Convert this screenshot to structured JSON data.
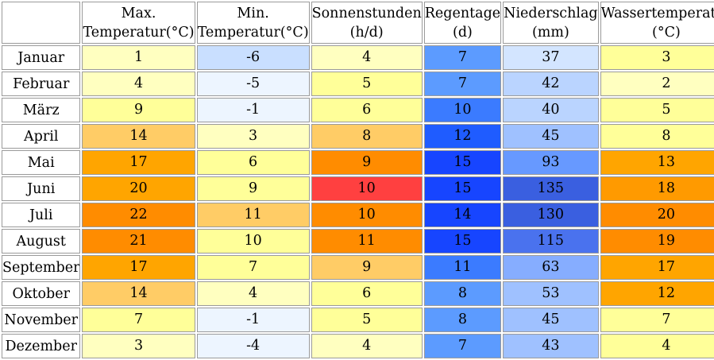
{
  "table": {
    "headers": [
      {
        "line1": "Max.",
        "line2": "Temperatur(°C)"
      },
      {
        "line1": "Min.",
        "line2": "Temperatur(°C)"
      },
      {
        "line1": "Sonnenstunden",
        "line2": "(h/d)"
      },
      {
        "line1": "Regentage",
        "line2": "(d)"
      },
      {
        "line1": "Niederschlag",
        "line2": "(mm)"
      },
      {
        "line1": "Wassertemperatur",
        "line2": "(°C)"
      }
    ],
    "rows": [
      {
        "month": "Januar",
        "cells": [
          "1",
          "-6",
          "4",
          "7",
          "37",
          "3"
        ]
      },
      {
        "month": "Februar",
        "cells": [
          "4",
          "-5",
          "5",
          "7",
          "42",
          "2"
        ]
      },
      {
        "month": "März",
        "cells": [
          "9",
          "-1",
          "6",
          "10",
          "40",
          "5"
        ]
      },
      {
        "month": "April",
        "cells": [
          "14",
          "3",
          "8",
          "12",
          "45",
          "8"
        ]
      },
      {
        "month": "Mai",
        "cells": [
          "17",
          "6",
          "9",
          "15",
          "93",
          "13"
        ]
      },
      {
        "month": "Juni",
        "cells": [
          "20",
          "9",
          "10",
          "15",
          "135",
          "18"
        ]
      },
      {
        "month": "Juli",
        "cells": [
          "22",
          "11",
          "10",
          "14",
          "130",
          "20"
        ]
      },
      {
        "month": "August",
        "cells": [
          "21",
          "10",
          "11",
          "15",
          "115",
          "19"
        ]
      },
      {
        "month": "September",
        "cells": [
          "17",
          "7",
          "9",
          "11",
          "63",
          "17"
        ]
      },
      {
        "month": "Oktober",
        "cells": [
          "14",
          "4",
          "6",
          "8",
          "53",
          "12"
        ]
      },
      {
        "month": "November",
        "cells": [
          "7",
          "-1",
          "5",
          "8",
          "45",
          "7"
        ]
      },
      {
        "month": "Dezember",
        "cells": [
          "3",
          "-4",
          "4",
          "7",
          "43",
          "4"
        ]
      }
    ],
    "cell_colors": [
      [
        "#ffffc0",
        "#c9dfff",
        "#ffffc0",
        "#5c9bff",
        "#d3e5ff",
        "#ffff99"
      ],
      [
        "#ffffc0",
        "#edf5ff",
        "#ffff99",
        "#5c9bff",
        "#bad4ff",
        "#ffffc0"
      ],
      [
        "#ffff99",
        "#edf5ff",
        "#ffff99",
        "#3b7bff",
        "#bad4ff",
        "#ffff99"
      ],
      [
        "#ffcc66",
        "#ffffc0",
        "#ffcc66",
        "#1f5cff",
        "#9fc1ff",
        "#ffff99"
      ],
      [
        "#ffa500",
        "#ffff99",
        "#ff8c00",
        "#1745ff",
        "#6799ff",
        "#ffa500"
      ],
      [
        "#ffa500",
        "#ffff99",
        "#ff4040",
        "#1745ff",
        "#3a5fe0",
        "#ff9a00"
      ],
      [
        "#ff8c00",
        "#ffcc66",
        "#ff8c00",
        "#1745ff",
        "#3a5fe0",
        "#ff8c00"
      ],
      [
        "#ff8c00",
        "#ffff99",
        "#ff8c00",
        "#1745ff",
        "#4a72ee",
        "#ff8c00"
      ],
      [
        "#ffa500",
        "#ffff99",
        "#ffcc66",
        "#3b7bff",
        "#86adff",
        "#ffa500"
      ],
      [
        "#ffcc66",
        "#ffffc0",
        "#ffff99",
        "#5c9bff",
        "#9fc1ff",
        "#ffa500"
      ],
      [
        "#ffff99",
        "#edf5ff",
        "#ffff99",
        "#5c9bff",
        "#9fc1ff",
        "#ffff99"
      ],
      [
        "#ffffc0",
        "#edf5ff",
        "#ffffc0",
        "#5c9bff",
        "#9fc1ff",
        "#ffff99"
      ]
    ]
  }
}
